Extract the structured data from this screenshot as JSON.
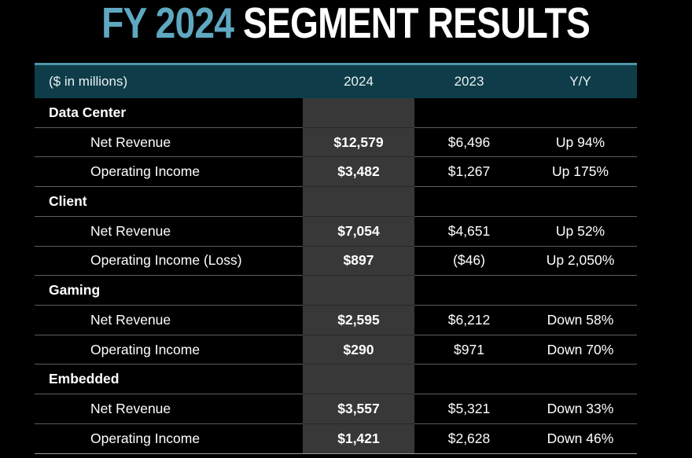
{
  "title": {
    "highlight": "FY 2024",
    "rest": " SEGMENT RESULTS"
  },
  "colors": {
    "background": "#000000",
    "title_accent": "#5FA8C2",
    "title_main": "#FFFFFF",
    "header_bg": "#0E3D49",
    "header_top_border": "#4E96A8",
    "highlight_column_bg": "#383838",
    "row_separator": "#5E5E5E",
    "bottom_rule": "#9B9B9B",
    "text": "#FFFFFF"
  },
  "table": {
    "unit_label": "($ in millions)",
    "columns": [
      "2024",
      "2023",
      "Y/Y"
    ],
    "highlighted_column": "2024",
    "sections": [
      {
        "name": "Data Center",
        "rows": [
          {
            "label": "Net Revenue",
            "y2024": "$12,579",
            "y2023": "$6,496",
            "yoy": "Up 94%"
          },
          {
            "label": "Operating Income",
            "y2024": "$3,482",
            "y2023": "$1,267",
            "yoy": "Up 175%"
          }
        ]
      },
      {
        "name": "Client",
        "rows": [
          {
            "label": "Net Revenue",
            "y2024": "$7,054",
            "y2023": "$4,651",
            "yoy": "Up 52%"
          },
          {
            "label": "Operating Income (Loss)",
            "y2024": "$897",
            "y2023": "($46)",
            "yoy": "Up 2,050%"
          }
        ]
      },
      {
        "name": "Gaming",
        "rows": [
          {
            "label": "Net Revenue",
            "y2024": "$2,595",
            "y2023": "$6,212",
            "yoy": "Down 58%"
          },
          {
            "label": "Operating Income",
            "y2024": "$290",
            "y2023": "$971",
            "yoy": "Down 70%"
          }
        ]
      },
      {
        "name": "Embedded",
        "rows": [
          {
            "label": "Net Revenue",
            "y2024": "$3,557",
            "y2023": "$5,321",
            "yoy": "Down 33%"
          },
          {
            "label": "Operating Income",
            "y2024": "$1,421",
            "y2023": "$2,628",
            "yoy": "Down 46%"
          }
        ]
      }
    ]
  }
}
